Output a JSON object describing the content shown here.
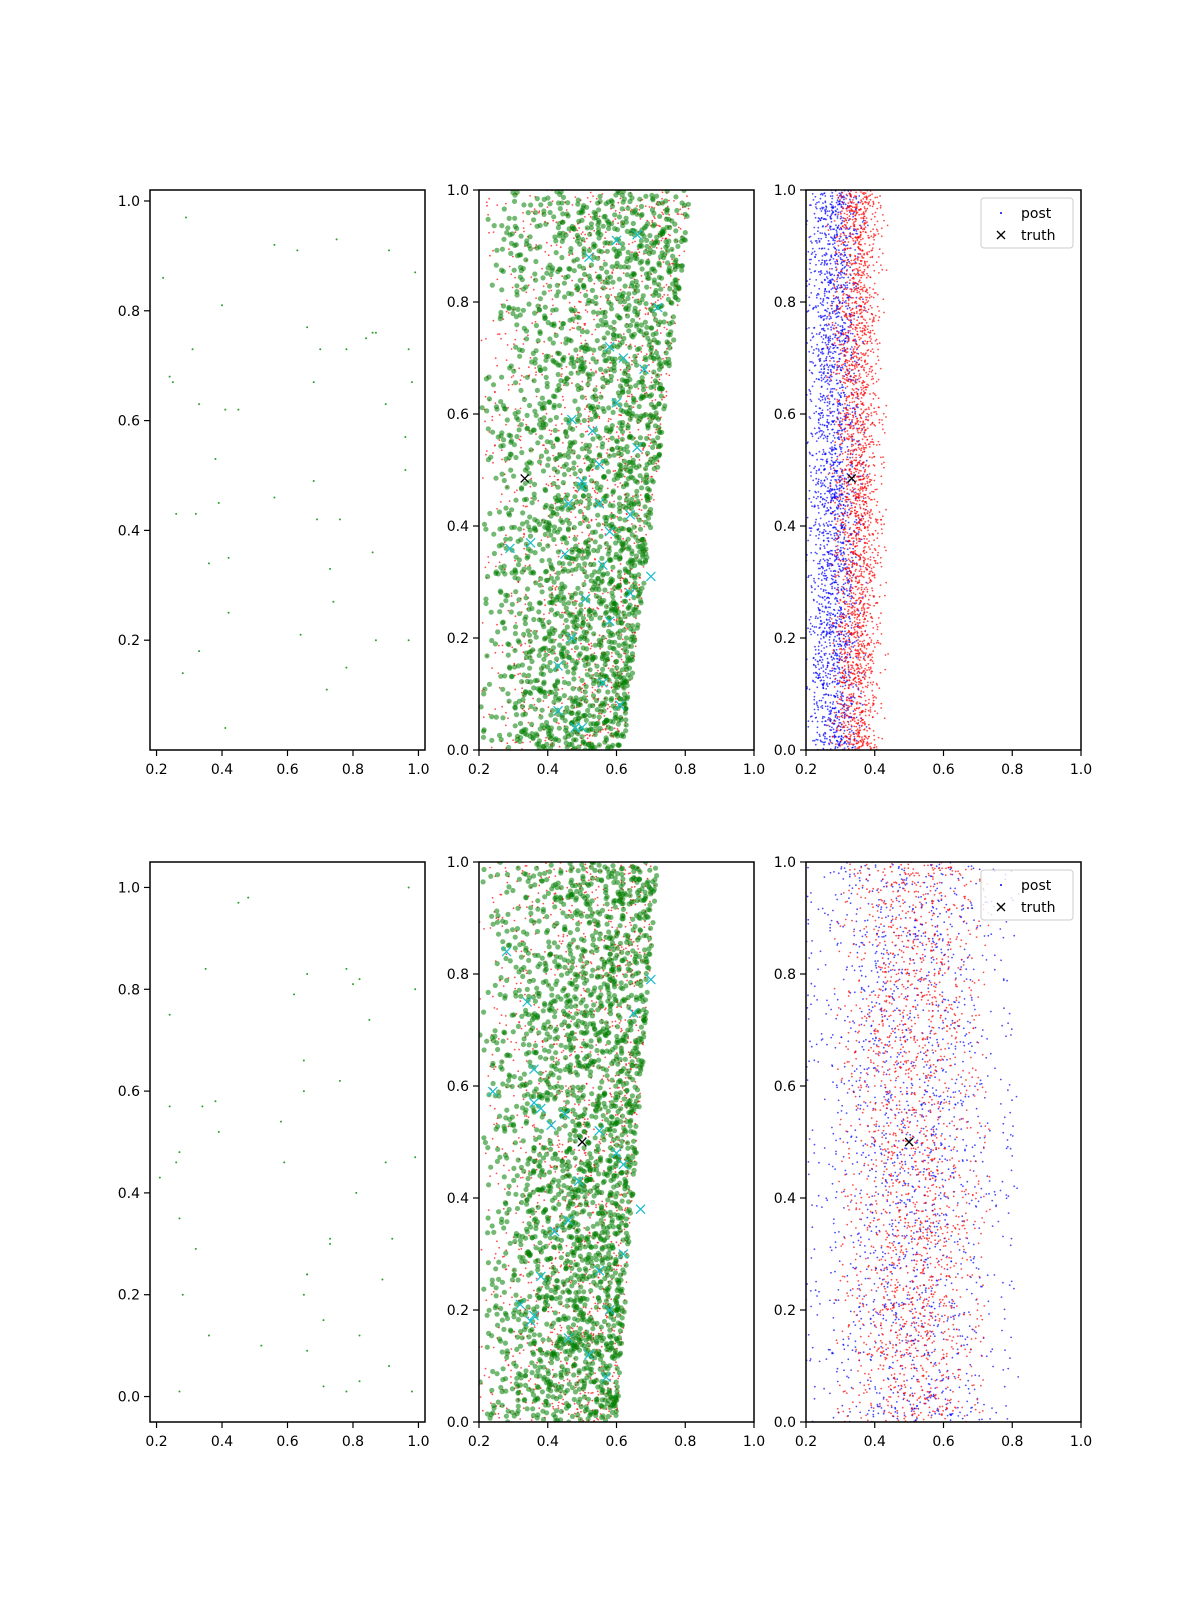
{
  "chart_data": [
    {
      "type": "scatter",
      "panel": "row1-col1",
      "xlim": [
        0.18,
        1.02
      ],
      "ylim": [
        0.0,
        1.02
      ],
      "xticks": [
        "0.2",
        "0.4",
        "0.6",
        "0.8",
        "1.0"
      ],
      "yticks": [
        "0.2",
        "0.4",
        "0.6",
        "0.8",
        "1.0"
      ],
      "series": [
        {
          "role": "samples",
          "color": "#2ca02c",
          "marker": "dot",
          "size": "tiny",
          "x": [
            0.29,
            0.56,
            0.63,
            0.75,
            0.91,
            0.99,
            0.22,
            0.4,
            0.66,
            0.7,
            0.78,
            0.84,
            0.86,
            0.87,
            0.24,
            0.25,
            0.31,
            0.33,
            0.41,
            0.45,
            0.68,
            0.97,
            0.98,
            0.38,
            0.39,
            0.56,
            0.68,
            0.9,
            0.96,
            0.26,
            0.32,
            0.69,
            0.76,
            0.96,
            0.36,
            0.42,
            0.73,
            0.86,
            0.74,
            0.42,
            0.64,
            0.87,
            0.97,
            0.33,
            0.78,
            0.28,
            0.72,
            0.41
          ],
          "y": [
            0.97,
            0.92,
            0.91,
            0.93,
            0.91,
            0.87,
            0.86,
            0.81,
            0.77,
            0.73,
            0.73,
            0.75,
            0.76,
            0.76,
            0.68,
            0.67,
            0.73,
            0.63,
            0.62,
            0.62,
            0.67,
            0.73,
            0.67,
            0.53,
            0.45,
            0.46,
            0.49,
            0.63,
            0.57,
            0.43,
            0.43,
            0.42,
            0.42,
            0.51,
            0.34,
            0.35,
            0.33,
            0.36,
            0.27,
            0.25,
            0.21,
            0.2,
            0.2,
            0.18,
            0.15,
            0.14,
            0.11,
            0.04
          ]
        }
      ]
    },
    {
      "type": "scatter",
      "panel": "row1-col2",
      "xlim": [
        0.2,
        1.0
      ],
      "ylim": [
        0.0,
        1.0
      ],
      "xticks": [
        "0.2",
        "0.4",
        "0.6",
        "0.8",
        "1.0"
      ],
      "yticks": [
        "0.0",
        "0.2",
        "0.4",
        "0.6",
        "0.8",
        "1.0"
      ],
      "band": {
        "left_at_y0": 0.2,
        "left_at_y1": 0.2,
        "right_at_y0": 0.62,
        "right_at_y1": 0.82
      },
      "series": [
        {
          "role": "samples",
          "color": "#ff0000",
          "marker": "dot",
          "size": "tiny",
          "count": 1500
        },
        {
          "role": "samples",
          "color": "#008000",
          "marker": "dot",
          "size": "large",
          "alpha": 0.55,
          "count": 2200
        },
        {
          "role": "samples",
          "color": "#17becf",
          "marker": "x",
          "x": [
            0.29,
            0.43,
            0.5,
            0.35,
            0.45,
            0.5,
            0.55,
            0.58,
            0.62,
            0.68,
            0.47,
            0.52,
            0.58,
            0.64,
            0.7,
            0.6,
            0.66,
            0.5,
            0.55,
            0.6,
            0.66,
            0.72,
            0.43,
            0.47,
            0.51,
            0.56,
            0.61,
            0.46,
            0.53,
            0.58,
            0.64,
            0.48,
            0.56
          ],
          "y": [
            0.36,
            0.07,
            0.04,
            0.37,
            0.35,
            0.48,
            0.44,
            0.72,
            0.7,
            0.68,
            0.59,
            0.88,
            0.23,
            0.28,
            0.31,
            0.62,
            0.54,
            0.47,
            0.51,
            0.91,
            0.92,
            0.79,
            0.15,
            0.2,
            0.27,
            0.12,
            0.08,
            0.44,
            0.57,
            0.39,
            0.42,
            0.04,
            0.33
          ]
        },
        {
          "role": "truth",
          "color": "#000000",
          "marker": "x",
          "x": [
            0.333
          ],
          "y": [
            0.485
          ]
        }
      ]
    },
    {
      "type": "scatter",
      "panel": "row1-col3",
      "xlim": [
        0.2,
        1.0
      ],
      "ylim": [
        0.0,
        1.0
      ],
      "xticks": [
        "0.2",
        "0.4",
        "0.6",
        "0.8",
        "1.0"
      ],
      "yticks": [
        "0.0",
        "0.2",
        "0.4",
        "0.6",
        "0.8",
        "1.0"
      ],
      "legend": {
        "location": "top-right"
      },
      "series": [
        {
          "name": "post",
          "color": "#0000ff",
          "marker": "dot",
          "size": "tiny",
          "count": 2400,
          "x_range": [
            0.2,
            0.36
          ]
        },
        {
          "name": "post",
          "color": "#ff0000",
          "marker": "dot",
          "size": "tiny",
          "count": 2400,
          "x_range": [
            0.28,
            0.42
          ]
        },
        {
          "name": "truth",
          "color": "#000000",
          "marker": "x",
          "x": [
            0.333
          ],
          "y": [
            0.485
          ]
        }
      ]
    },
    {
      "type": "scatter",
      "panel": "row2-col1",
      "xlim": [
        0.18,
        1.02
      ],
      "ylim": [
        -0.05,
        1.05
      ],
      "xticks": [
        "0.2",
        "0.4",
        "0.6",
        "0.8",
        "1.0"
      ],
      "yticks": [
        "0.0",
        "0.2",
        "0.4",
        "0.6",
        "0.8",
        "1.0"
      ],
      "series": [
        {
          "role": "samples",
          "color": "#2ca02c",
          "marker": "dot",
          "size": "tiny",
          "x": [
            0.45,
            0.48,
            0.97,
            0.24,
            0.35,
            0.62,
            0.66,
            0.78,
            0.8,
            0.82,
            0.85,
            0.99,
            0.65,
            0.76,
            0.24,
            0.34,
            0.38,
            0.39,
            0.58,
            0.65,
            0.21,
            0.26,
            0.27,
            0.59,
            0.81,
            0.9,
            0.99,
            0.27,
            0.32,
            0.66,
            0.73,
            0.73,
            0.92,
            0.28,
            0.65,
            0.66,
            0.89,
            0.36,
            0.52,
            0.66,
            0.71,
            0.82,
            0.27,
            0.71,
            0.78,
            0.82,
            0.91,
            0.98
          ],
          "y": [
            0.97,
            0.98,
            1.0,
            0.75,
            0.84,
            0.79,
            0.83,
            0.84,
            0.81,
            0.82,
            0.74,
            0.8,
            0.66,
            0.62,
            0.57,
            0.57,
            0.58,
            0.52,
            0.54,
            0.6,
            0.43,
            0.46,
            0.48,
            0.46,
            0.4,
            0.46,
            0.47,
            0.35,
            0.29,
            0.24,
            0.3,
            0.31,
            0.31,
            0.2,
            0.2,
            0.24,
            0.23,
            0.12,
            0.1,
            0.09,
            0.15,
            0.12,
            0.01,
            0.02,
            0.01,
            0.03,
            0.06,
            0.01
          ]
        }
      ]
    },
    {
      "type": "scatter",
      "panel": "row2-col2",
      "xlim": [
        0.2,
        1.0
      ],
      "ylim": [
        0.0,
        1.0
      ],
      "xticks": [
        "0.2",
        "0.4",
        "0.6",
        "0.8",
        "1.0"
      ],
      "yticks": [
        "0.0",
        "0.2",
        "0.4",
        "0.6",
        "0.8",
        "1.0"
      ],
      "band": {
        "left_at_y0": 0.2,
        "left_at_y1": 0.2,
        "right_at_y0": 0.6,
        "right_at_y1": 0.72
      },
      "series": [
        {
          "role": "samples",
          "color": "#ff0000",
          "marker": "dot",
          "size": "tiny",
          "count": 1500
        },
        {
          "role": "samples",
          "color": "#008000",
          "marker": "dot",
          "size": "large",
          "alpha": 0.55,
          "count": 2200
        },
        {
          "role": "samples",
          "color": "#17becf",
          "marker": "x",
          "x": [
            0.28,
            0.34,
            0.36,
            0.24,
            0.36,
            0.38,
            0.41,
            0.45,
            0.5,
            0.55,
            0.6,
            0.65,
            0.7,
            0.32,
            0.35,
            0.36,
            0.38,
            0.46,
            0.52,
            0.57,
            0.62,
            0.46,
            0.49,
            0.55,
            0.62,
            0.67,
            0.42,
            0.58
          ],
          "y": [
            0.84,
            0.75,
            0.63,
            0.59,
            0.57,
            0.56,
            0.53,
            0.55,
            0.5,
            0.52,
            0.48,
            0.73,
            0.79,
            0.21,
            0.18,
            0.19,
            0.26,
            0.15,
            0.12,
            0.08,
            0.3,
            0.36,
            0.43,
            0.27,
            0.46,
            0.38,
            0.34,
            0.2
          ]
        },
        {
          "role": "truth",
          "color": "#000000",
          "marker": "x",
          "x": [
            0.5
          ],
          "y": [
            0.5
          ]
        }
      ]
    },
    {
      "type": "scatter",
      "panel": "row2-col3",
      "xlim": [
        0.2,
        1.0
      ],
      "ylim": [
        0.0,
        1.0
      ],
      "xticks": [
        "0.2",
        "0.4",
        "0.6",
        "0.8",
        "1.0"
      ],
      "yticks": [
        "0.0",
        "0.2",
        "0.4",
        "0.6",
        "0.8",
        "1.0"
      ],
      "legend": {
        "location": "top-right"
      },
      "series": [
        {
          "name": "post",
          "color": "#0000ff",
          "marker": "dot",
          "size": "tiny",
          "count": 1800,
          "x_range": [
            0.2,
            0.8
          ]
        },
        {
          "name": "post",
          "color": "#ff0000",
          "marker": "dot",
          "size": "tiny",
          "count": 2000,
          "x_range": [
            0.3,
            0.72
          ]
        },
        {
          "name": "truth",
          "color": "#000000",
          "marker": "x",
          "x": [
            0.5
          ],
          "y": [
            0.5
          ]
        }
      ]
    }
  ],
  "legend_labels": {
    "post": "post",
    "truth": "truth"
  }
}
